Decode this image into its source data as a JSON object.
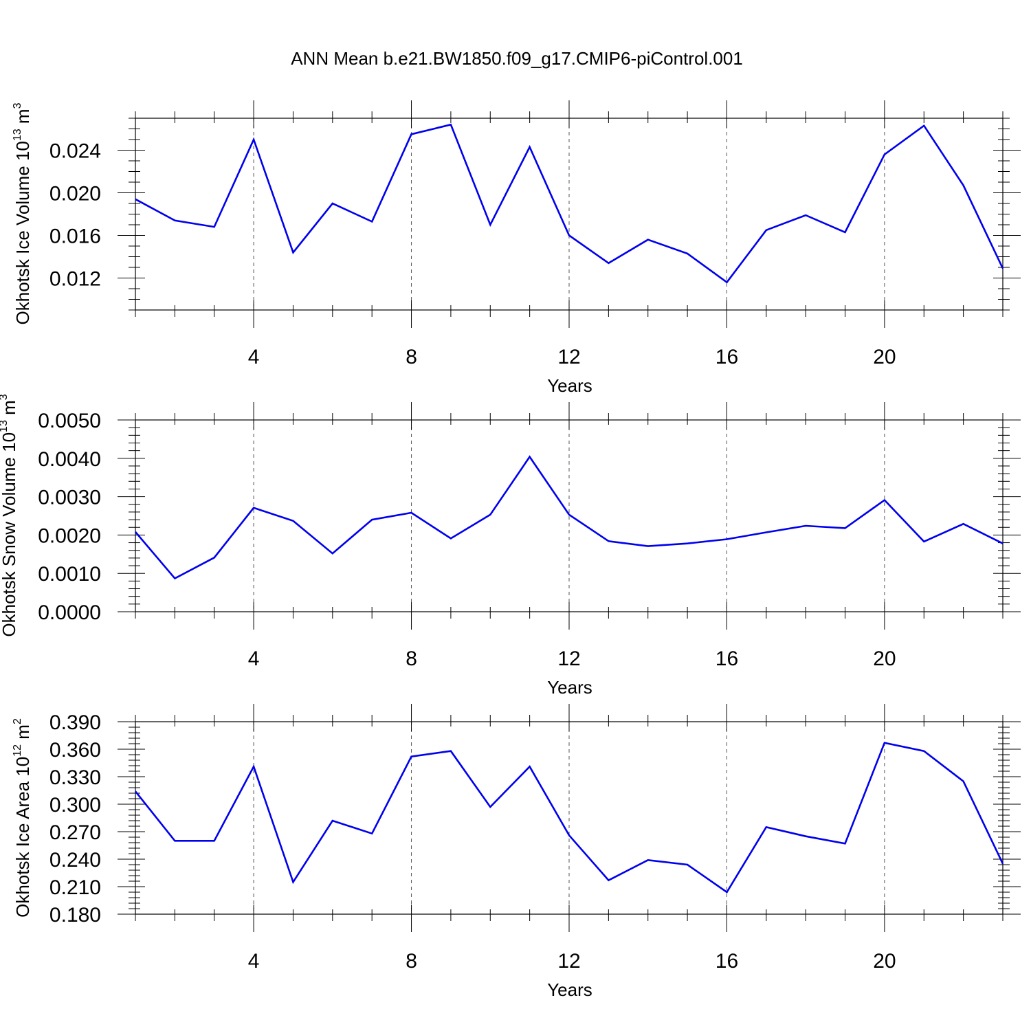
{
  "title": "ANN Mean b.e21.BW1850.f09_g17.CMIP6-piControl.001",
  "line_color": "#0000ee",
  "chart_data": [
    {
      "type": "line",
      "id": "ice-volume",
      "ylabel": "Okhotsk Ice Volume 10",
      "ylabel_sup": "13",
      "ylabel_unit": "m",
      "ylabel_unit_sup": "3",
      "xlabel": "Years",
      "xlim": [
        1,
        23
      ],
      "ylim": [
        0.009,
        0.027
      ],
      "xticks": [
        4,
        8,
        12,
        16,
        20
      ],
      "xtick_labels": [
        "4",
        "8",
        "12",
        "16",
        "20"
      ],
      "yticks": [
        0.012,
        0.016,
        0.02,
        0.024
      ],
      "ytick_labels": [
        "0.012",
        "0.016",
        "0.020",
        "0.024"
      ],
      "yminor_step": 0.001,
      "x": [
        1,
        2,
        3,
        4,
        5,
        6,
        7,
        8,
        9,
        10,
        11,
        12,
        13,
        14,
        15,
        16,
        17,
        18,
        19,
        20,
        21,
        22,
        23
      ],
      "values": [
        0.0194,
        0.0174,
        0.0168,
        0.025,
        0.0144,
        0.019,
        0.0173,
        0.0255,
        0.0264,
        0.017,
        0.0243,
        0.016,
        0.0134,
        0.0156,
        0.0143,
        0.0116,
        0.0165,
        0.0179,
        0.0163,
        0.0236,
        0.0263,
        0.0207,
        0.0129
      ]
    },
    {
      "type": "line",
      "id": "snow-volume",
      "ylabel": "Okhotsk Snow Volume 10",
      "ylabel_sup": "13",
      "ylabel_unit": "m",
      "ylabel_unit_sup": "3",
      "xlabel": "Years",
      "xlim": [
        1,
        23
      ],
      "ylim": [
        0.0,
        0.005
      ],
      "xticks": [
        4,
        8,
        12,
        16,
        20
      ],
      "xtick_labels": [
        "4",
        "8",
        "12",
        "16",
        "20"
      ],
      "yticks": [
        0.0,
        0.001,
        0.002,
        0.003,
        0.004,
        0.005
      ],
      "ytick_labels": [
        "0.0000",
        "0.0010",
        "0.0020",
        "0.0030",
        "0.0040",
        "0.0050"
      ],
      "yminor_step": 0.0002,
      "x": [
        1,
        2,
        3,
        4,
        5,
        6,
        7,
        8,
        9,
        10,
        11,
        12,
        13,
        14,
        15,
        16,
        17,
        18,
        19,
        20,
        21,
        22,
        23
      ],
      "values": [
        0.00208,
        0.00087,
        0.00141,
        0.00271,
        0.00237,
        0.00152,
        0.0024,
        0.00258,
        0.00191,
        0.00253,
        0.00404,
        0.00253,
        0.00184,
        0.00171,
        0.00178,
        0.00189,
        0.00207,
        0.00224,
        0.00218,
        0.00291,
        0.00183,
        0.00229,
        0.00178
      ]
    },
    {
      "type": "line",
      "id": "ice-area",
      "ylabel": "Okhotsk Ice Area 10",
      "ylabel_sup": "12",
      "ylabel_unit": "m",
      "ylabel_unit_sup": "2",
      "xlabel": "Years",
      "xlim": [
        1,
        23
      ],
      "ylim": [
        0.18,
        0.39
      ],
      "xticks": [
        4,
        8,
        12,
        16,
        20
      ],
      "xtick_labels": [
        "4",
        "8",
        "12",
        "16",
        "20"
      ],
      "yticks": [
        0.18,
        0.21,
        0.24,
        0.27,
        0.3,
        0.33,
        0.36,
        0.39
      ],
      "ytick_labels": [
        "0.180",
        "0.210",
        "0.240",
        "0.270",
        "0.300",
        "0.330",
        "0.360",
        "0.390"
      ],
      "yminor_step": 0.006,
      "x": [
        1,
        2,
        3,
        4,
        5,
        6,
        7,
        8,
        9,
        10,
        11,
        12,
        13,
        14,
        15,
        16,
        17,
        18,
        19,
        20,
        21,
        22,
        23
      ],
      "values": [
        0.314,
        0.26,
        0.26,
        0.341,
        0.215,
        0.282,
        0.268,
        0.352,
        0.358,
        0.297,
        0.341,
        0.266,
        0.217,
        0.239,
        0.234,
        0.204,
        0.275,
        0.265,
        0.257,
        0.367,
        0.358,
        0.325,
        0.235
      ]
    }
  ]
}
